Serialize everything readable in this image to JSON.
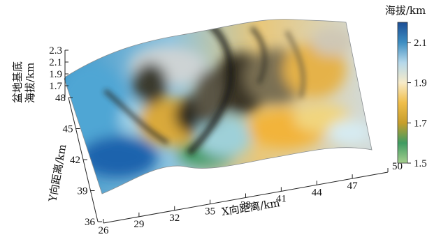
{
  "chart_data": {
    "type": "surface",
    "title": "",
    "xlabel": "X向距离/km",
    "ylabel": "Y向距离/km",
    "zlabel": "盆地基底海拔/km",
    "x_ticks": [
      26,
      29,
      32,
      35,
      38,
      41,
      44,
      47,
      50
    ],
    "y_ticks": [
      36,
      39,
      42,
      45,
      48
    ],
    "z_ticks": [
      1.7,
      1.9,
      2.1,
      2.3
    ],
    "xlim": [
      26,
      50
    ],
    "ylim": [
      36,
      48
    ],
    "zlim": [
      1.5,
      2.3
    ],
    "colorbar": {
      "title": "海拔/km",
      "ticks": [
        1.5,
        1.7,
        1.9,
        2.1
      ],
      "range": [
        1.5,
        2.2
      ],
      "colors": [
        "#a6cf8e",
        "#3f9c62",
        "#c79e2c",
        "#f0be4a",
        "#f7ebc9",
        "#b5d8ea",
        "#3d8ec2",
        "#1c4e95"
      ]
    }
  }
}
